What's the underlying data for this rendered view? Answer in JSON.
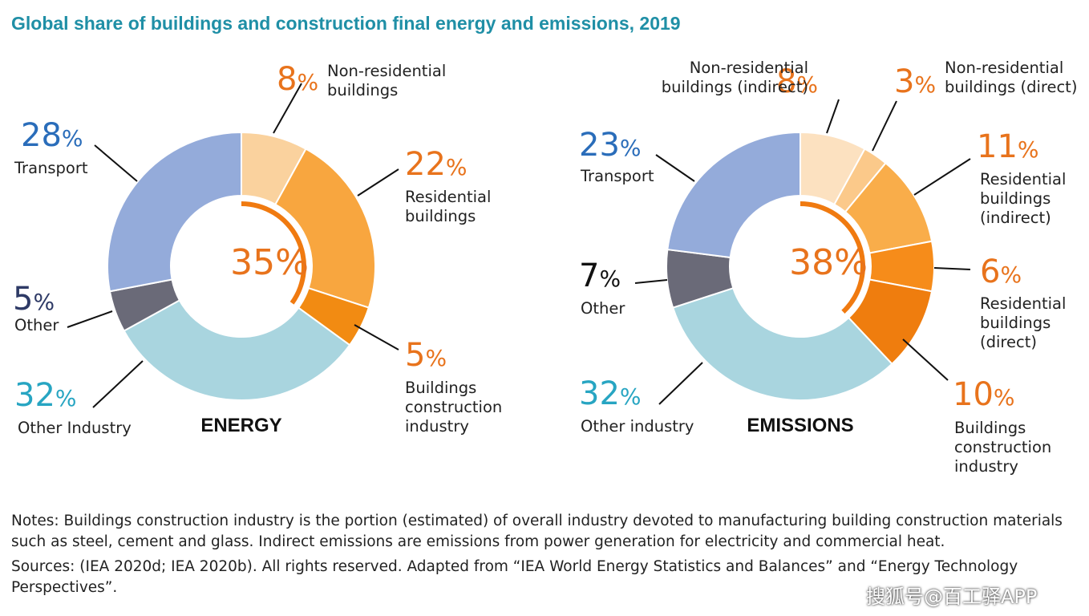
{
  "title": "Global share of buildings and construction final energy and emissions, 2019",
  "chart_data": [
    {
      "type": "donut",
      "caption": "ENERGY",
      "center_label": "35%",
      "slices": [
        {
          "label": [
            "Non-residential",
            "buildings"
          ],
          "value": 8,
          "display": "8%",
          "color": "#fad29e",
          "pct_color": "#e8731c"
        },
        {
          "label": [
            "Residential",
            "buildings"
          ],
          "value": 22,
          "display": "22%",
          "color": "#f8a63f",
          "pct_color": "#e8731c"
        },
        {
          "label": [
            "Buildings",
            "construction",
            "industry"
          ],
          "value": 5,
          "display": "5%",
          "color": "#f28b12",
          "pct_color": "#e8731c"
        },
        {
          "label": [
            "Other Industry"
          ],
          "value": 32,
          "display": "32%",
          "color": "#a9d5df",
          "pct_color": "#27a5c2"
        },
        {
          "label": [
            "Other"
          ],
          "value": 5,
          "display": "5%",
          "color": "#6a6a78",
          "pct_color": "#2e3a66"
        },
        {
          "label": [
            "Transport"
          ],
          "value": 28,
          "display": "28%",
          "color": "#94abda",
          "pct_color": "#2a6dba"
        }
      ]
    },
    {
      "type": "donut",
      "caption": "EMISSIONS",
      "center_label": "38%",
      "slices": [
        {
          "label": [
            "Non-residential",
            "buildings (indirect)"
          ],
          "value": 8,
          "display": "8%",
          "color": "#fce1c0",
          "pct_color": "#e8731c"
        },
        {
          "label": [
            "Non-residential",
            "buildings (direct)"
          ],
          "value": 3,
          "display": "3%",
          "color": "#fbc98a",
          "pct_color": "#e8731c"
        },
        {
          "label": [
            "Residential",
            "buildings",
            "(indirect)"
          ],
          "value": 11,
          "display": "11%",
          "color": "#f9ad4a",
          "pct_color": "#e8731c"
        },
        {
          "label": [
            "Residential",
            "buildings",
            "(direct)"
          ],
          "value": 6,
          "display": "6%",
          "color": "#f68c1a",
          "pct_color": "#e8731c"
        },
        {
          "label": [
            "Buildings",
            "construction",
            "industry"
          ],
          "value": 10,
          "display": "10%",
          "color": "#ef7d0e",
          "pct_color": "#e8731c"
        },
        {
          "label": [
            "Other industry"
          ],
          "value": 32,
          "display": "32%",
          "color": "#a9d5df",
          "pct_color": "#27a5c2"
        },
        {
          "label": [
            "Other"
          ],
          "value": 7,
          "display": "7%",
          "color": "#6a6a78",
          "pct_color": "#111111"
        },
        {
          "label": [
            "Transport"
          ],
          "value": 23,
          "display": "23%",
          "color": "#94abda",
          "pct_color": "#2a6dba"
        }
      ]
    }
  ],
  "notes": "Notes: Buildings construction industry is the portion (estimated) of overall industry devoted to manufacturing building construction materials such as steel, cement and glass. Indirect emissions are emissions from power generation for electricity and commercial heat.",
  "sources": "Sources: (IEA 2020d; IEA 2020b). All rights reserved. Adapted from “IEA World Energy Statistics and Balances” and “Energy Technology Perspectives”.",
  "watermark": "搜狐号@百工驿APP"
}
